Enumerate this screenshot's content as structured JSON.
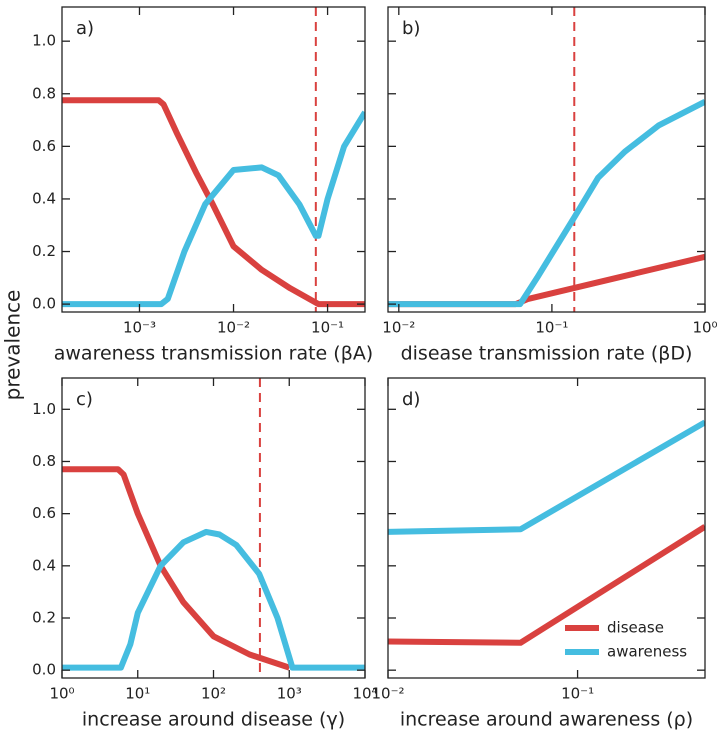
{
  "ylabel": "prevalence",
  "chart_data": [
    {
      "type": "line",
      "title": "a)",
      "xlabel": "awareness transmission rate (βA)",
      "xscale": "log",
      "xlim": [
        0.00015,
        0.25
      ],
      "ylim": [
        -0.03,
        1.13
      ],
      "xticks": [
        {
          "value": 0.001,
          "label": "10⁻³"
        },
        {
          "value": 0.01,
          "label": "10⁻²"
        },
        {
          "value": 0.1,
          "label": "10⁻¹"
        }
      ],
      "yticks": [
        {
          "value": 0,
          "label": "0.0"
        },
        {
          "value": 0.2,
          "label": "0.2"
        },
        {
          "value": 0.4,
          "label": "0.4"
        },
        {
          "value": 0.6,
          "label": "0.6"
        },
        {
          "value": 0.8,
          "label": "0.8"
        },
        {
          "value": 1,
          "label": "1.0"
        }
      ],
      "ytick_labels": true,
      "vlines": [
        0.075
      ],
      "vline_color": "#d9413f",
      "series": [
        {
          "name": "disease",
          "color": "#d9413f",
          "x": [
            0.00015,
            0.0016,
            0.0018,
            0.0025,
            0.004,
            0.006,
            0.01,
            0.02,
            0.04,
            0.08,
            0.25
          ],
          "values": [
            0.775,
            0.775,
            0.76,
            0.65,
            0.5,
            0.38,
            0.22,
            0.13,
            0.06,
            0.0,
            0.0
          ]
        },
        {
          "name": "awareness",
          "color": "#45bde0",
          "x": [
            0.00015,
            0.0017,
            0.002,
            0.003,
            0.005,
            0.01,
            0.02,
            0.03,
            0.05,
            0.075,
            0.08,
            0.1,
            0.15,
            0.25
          ],
          "values": [
            0.0,
            0.0,
            0.02,
            0.2,
            0.38,
            0.51,
            0.52,
            0.49,
            0.38,
            0.26,
            0.26,
            0.4,
            0.6,
            0.73
          ]
        }
      ]
    },
    {
      "type": "line",
      "title": "b)",
      "xlabel": "disease transmission rate (βD)",
      "xscale": "log",
      "xlim": [
        0.0085,
        1
      ],
      "ylim": [
        -0.03,
        1.13
      ],
      "xticks": [
        {
          "value": 0.01,
          "label": "10⁻²"
        },
        {
          "value": 0.1,
          "label": "10⁻¹"
        },
        {
          "value": 1,
          "label": "10⁰"
        }
      ],
      "yticks": [
        {
          "value": 0,
          "label": "0.0"
        },
        {
          "value": 0.2,
          "label": "0.2"
        },
        {
          "value": 0.4,
          "label": "0.4"
        },
        {
          "value": 0.6,
          "label": "0.6"
        },
        {
          "value": 0.8,
          "label": "0.8"
        },
        {
          "value": 1,
          "label": "1.0"
        }
      ],
      "ytick_labels": false,
      "vlines": [
        0.14
      ],
      "vline_color": "#d9413f",
      "series": [
        {
          "name": "disease",
          "color": "#d9413f",
          "x": [
            0.0085,
            0.058,
            0.07,
            1
          ],
          "values": [
            0.0,
            0.0,
            0.02,
            0.18
          ]
        },
        {
          "name": "awareness",
          "color": "#45bde0",
          "x": [
            0.0085,
            0.062,
            0.08,
            0.14,
            0.2,
            0.3,
            0.5,
            1
          ],
          "values": [
            0.0,
            0.0,
            0.1,
            0.33,
            0.48,
            0.58,
            0.68,
            0.77
          ]
        }
      ]
    },
    {
      "type": "line",
      "title": "c)",
      "xlabel": "increase around disease (γ)",
      "xscale": "log",
      "xlim": [
        1,
        10000
      ],
      "ylim": [
        -0.03,
        1.12
      ],
      "xticks": [
        {
          "value": 1,
          "label": "10⁰"
        },
        {
          "value": 10,
          "label": "10¹"
        },
        {
          "value": 100,
          "label": "10²"
        },
        {
          "value": 1000,
          "label": "10³"
        },
        {
          "value": 10000,
          "label": "10⁴"
        }
      ],
      "yticks": [
        {
          "value": 0,
          "label": "0.0"
        },
        {
          "value": 0.2,
          "label": "0.2"
        },
        {
          "value": 0.4,
          "label": "0.4"
        },
        {
          "value": 0.6,
          "label": "0.6"
        },
        {
          "value": 0.8,
          "label": "0.8"
        },
        {
          "value": 1,
          "label": "1.0"
        }
      ],
      "ytick_labels": true,
      "vlines": [
        410
      ],
      "vline_color": "#d9413f",
      "series": [
        {
          "name": "disease",
          "color": "#d9413f",
          "x": [
            1,
            5.5,
            6.5,
            10,
            20,
            40,
            100,
            300,
            1000
          ],
          "values": [
            0.77,
            0.77,
            0.75,
            0.6,
            0.4,
            0.26,
            0.13,
            0.06,
            0.01
          ]
        },
        {
          "name": "awareness",
          "color": "#45bde0",
          "x": [
            1,
            6,
            8,
            10,
            20,
            40,
            80,
            120,
            200,
            400,
            700,
            1100,
            10000
          ],
          "values": [
            0.01,
            0.01,
            0.1,
            0.22,
            0.4,
            0.49,
            0.53,
            0.52,
            0.48,
            0.37,
            0.2,
            0.01,
            0.01
          ]
        }
      ]
    },
    {
      "type": "line",
      "title": "d)",
      "xlabel": "increase around awareness (ρ)",
      "xscale": "log",
      "xlim": [
        0.01,
        0.47
      ],
      "ylim": [
        -0.03,
        1.12
      ],
      "xticks": [
        {
          "value": 0.01,
          "label": "10⁻²"
        },
        {
          "value": 0.1,
          "label": "10⁻¹"
        }
      ],
      "yticks": [
        {
          "value": 0,
          "label": "0.0"
        },
        {
          "value": 0.2,
          "label": "0.2"
        },
        {
          "value": 0.4,
          "label": "0.4"
        },
        {
          "value": 0.6,
          "label": "0.6"
        },
        {
          "value": 0.8,
          "label": "0.8"
        },
        {
          "value": 1,
          "label": "1.0"
        }
      ],
      "ytick_labels": false,
      "legend": "lower right",
      "series": [
        {
          "name": "disease",
          "color": "#d9413f",
          "x": [
            0.01,
            0.05,
            0.47
          ],
          "values": [
            0.11,
            0.105,
            0.55
          ]
        },
        {
          "name": "awareness",
          "color": "#45bde0",
          "x": [
            0.01,
            0.05,
            0.47
          ],
          "values": [
            0.53,
            0.54,
            0.95
          ]
        }
      ]
    }
  ]
}
